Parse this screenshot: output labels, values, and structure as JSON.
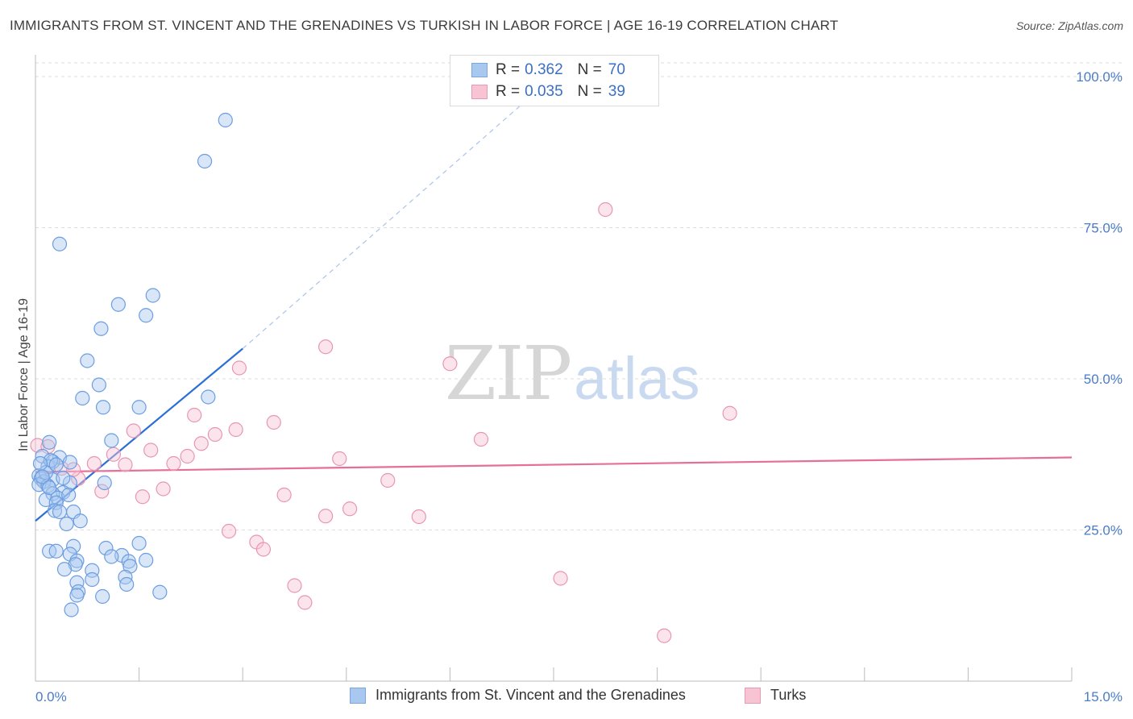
{
  "header": {
    "title": "IMMIGRANTS FROM ST. VINCENT AND THE GRENADINES VS TURKISH IN LABOR FORCE | AGE 16-19 CORRELATION CHART",
    "source": "Source: ZipAtlas.com"
  },
  "watermark": {
    "zip": "ZIP",
    "atlas": "atlas"
  },
  "legend": {
    "rows": [
      {
        "r_label": "R =",
        "r_value": "0.362",
        "n_label": "N =",
        "n_value": "70",
        "color": "#a8c8f0",
        "border": "#7aa7e0"
      },
      {
        "r_label": "R =",
        "r_value": "0.035",
        "n_label": "N =",
        "n_value": "39",
        "color": "#f8c4d4",
        "border": "#e89ab4"
      }
    ]
  },
  "bottom_legend": {
    "series1": "Immigrants from St. Vincent and the Grenadines",
    "series2": "Turks"
  },
  "colors": {
    "blue_fill": "#a8c8f0",
    "blue_stroke": "#6b9de0",
    "blue_line": "#2a6fd6",
    "pink_fill": "#f8c4d4",
    "pink_stroke": "#e896b0",
    "pink_line": "#e56f98",
    "grid": "#dcdcdc",
    "axis_text": "#4a7cc9"
  },
  "chart_data": {
    "type": "scatter",
    "title": "IMMIGRANTS FROM ST. VINCENT AND THE GRENADINES VS TURKISH IN LABOR FORCE | AGE 16-19 CORRELATION CHART",
    "xlabel": "",
    "ylabel": "In Labor Force | Age 16-19",
    "xlim": [
      0,
      15
    ],
    "ylim": [
      0,
      100
    ],
    "x_tick_labels": [
      "0.0%",
      "15.0%"
    ],
    "y_tick_labels": [
      "25.0%",
      "50.0%",
      "75.0%",
      "100.0%"
    ],
    "y_ticks": [
      25,
      50,
      75,
      100
    ],
    "x_minor_ticks": [
      0,
      1.5,
      3,
      4.5,
      6,
      7.5,
      9,
      10.5,
      12,
      13.5,
      15
    ],
    "grid": true,
    "series": [
      {
        "name": "Immigrants from St. Vincent and the Grenadines",
        "R": 0.362,
        "N": 70,
        "trend": {
          "x": [
            0,
            3.0
          ],
          "y": [
            26.5,
            55.0
          ],
          "dashed_to": [
            7.5,
            100
          ]
        },
        "points": [
          [
            2.75,
            92.8
          ],
          [
            2.45,
            86.0
          ],
          [
            0.35,
            72.3
          ],
          [
            1.7,
            63.8
          ],
          [
            1.2,
            62.3
          ],
          [
            1.6,
            60.5
          ],
          [
            0.95,
            58.3
          ],
          [
            0.75,
            53.0
          ],
          [
            0.92,
            49.0
          ],
          [
            0.68,
            46.8
          ],
          [
            0.98,
            45.3
          ],
          [
            1.5,
            45.3
          ],
          [
            2.5,
            47.0
          ],
          [
            1.1,
            39.8
          ],
          [
            0.2,
            39.5
          ],
          [
            0.1,
            37.2
          ],
          [
            0.35,
            37.0
          ],
          [
            0.25,
            36.3
          ],
          [
            0.5,
            36.2
          ],
          [
            0.18,
            35.5
          ],
          [
            0.05,
            34.0
          ],
          [
            0.08,
            33.5
          ],
          [
            0.25,
            33.3
          ],
          [
            0.12,
            33.0
          ],
          [
            0.05,
            32.5
          ],
          [
            0.18,
            32.3
          ],
          [
            0.5,
            32.8
          ],
          [
            1.0,
            32.8
          ],
          [
            0.4,
            31.2
          ],
          [
            0.25,
            31.0
          ],
          [
            0.15,
            30.0
          ],
          [
            0.32,
            30.3
          ],
          [
            0.3,
            29.5
          ],
          [
            0.28,
            28.2
          ],
          [
            0.55,
            28.0
          ],
          [
            0.35,
            28.0
          ],
          [
            0.65,
            26.5
          ],
          [
            0.45,
            26.0
          ],
          [
            0.55,
            22.3
          ],
          [
            1.5,
            22.8
          ],
          [
            1.02,
            22.0
          ],
          [
            0.2,
            21.5
          ],
          [
            0.3,
            21.5
          ],
          [
            0.5,
            21.0
          ],
          [
            1.25,
            20.8
          ],
          [
            1.1,
            20.6
          ],
          [
            1.6,
            20.0
          ],
          [
            1.35,
            19.8
          ],
          [
            0.6,
            19.9
          ],
          [
            0.58,
            19.3
          ],
          [
            1.37,
            19.0
          ],
          [
            0.42,
            18.5
          ],
          [
            0.82,
            18.3
          ],
          [
            1.3,
            17.2
          ],
          [
            0.82,
            16.8
          ],
          [
            0.6,
            16.3
          ],
          [
            1.32,
            16.0
          ],
          [
            1.8,
            14.7
          ],
          [
            0.62,
            14.8
          ],
          [
            0.6,
            14.2
          ],
          [
            0.97,
            14.0
          ],
          [
            0.52,
            11.8
          ],
          [
            0.22,
            36.5
          ],
          [
            0.4,
            33.6
          ],
          [
            0.15,
            34.5
          ],
          [
            0.3,
            35.8
          ],
          [
            0.1,
            33.8
          ],
          [
            0.48,
            30.8
          ],
          [
            0.2,
            32.0
          ],
          [
            0.07,
            36.0
          ]
        ]
      },
      {
        "name": "Turks",
        "R": 0.035,
        "N": 39,
        "trend": {
          "x": [
            0,
            15
          ],
          "y": [
            34.6,
            37.0
          ]
        },
        "points": [
          [
            8.25,
            78.0
          ],
          [
            4.2,
            55.3
          ],
          [
            2.95,
            51.8
          ],
          [
            6.0,
            52.5
          ],
          [
            10.05,
            44.3
          ],
          [
            2.3,
            44.0
          ],
          [
            3.45,
            42.8
          ],
          [
            2.9,
            41.6
          ],
          [
            1.42,
            41.4
          ],
          [
            2.6,
            40.8
          ],
          [
            6.45,
            40.0
          ],
          [
            2.4,
            39.3
          ],
          [
            0.03,
            39.0
          ],
          [
            0.18,
            38.8
          ],
          [
            1.67,
            38.2
          ],
          [
            1.13,
            37.5
          ],
          [
            2.2,
            37.2
          ],
          [
            4.4,
            36.8
          ],
          [
            0.85,
            36.0
          ],
          [
            1.3,
            35.8
          ],
          [
            2.0,
            36.0
          ],
          [
            0.38,
            35.2
          ],
          [
            0.62,
            33.5
          ],
          [
            5.1,
            33.2
          ],
          [
            1.85,
            31.8
          ],
          [
            0.96,
            31.4
          ],
          [
            3.6,
            30.8
          ],
          [
            1.55,
            30.5
          ],
          [
            4.55,
            28.5
          ],
          [
            4.2,
            27.3
          ],
          [
            5.55,
            27.2
          ],
          [
            2.8,
            24.8
          ],
          [
            3.2,
            23.0
          ],
          [
            3.3,
            21.8
          ],
          [
            7.6,
            17.0
          ],
          [
            3.75,
            15.8
          ],
          [
            3.9,
            13.0
          ],
          [
            9.1,
            7.5
          ],
          [
            0.55,
            35.0
          ]
        ]
      }
    ]
  }
}
